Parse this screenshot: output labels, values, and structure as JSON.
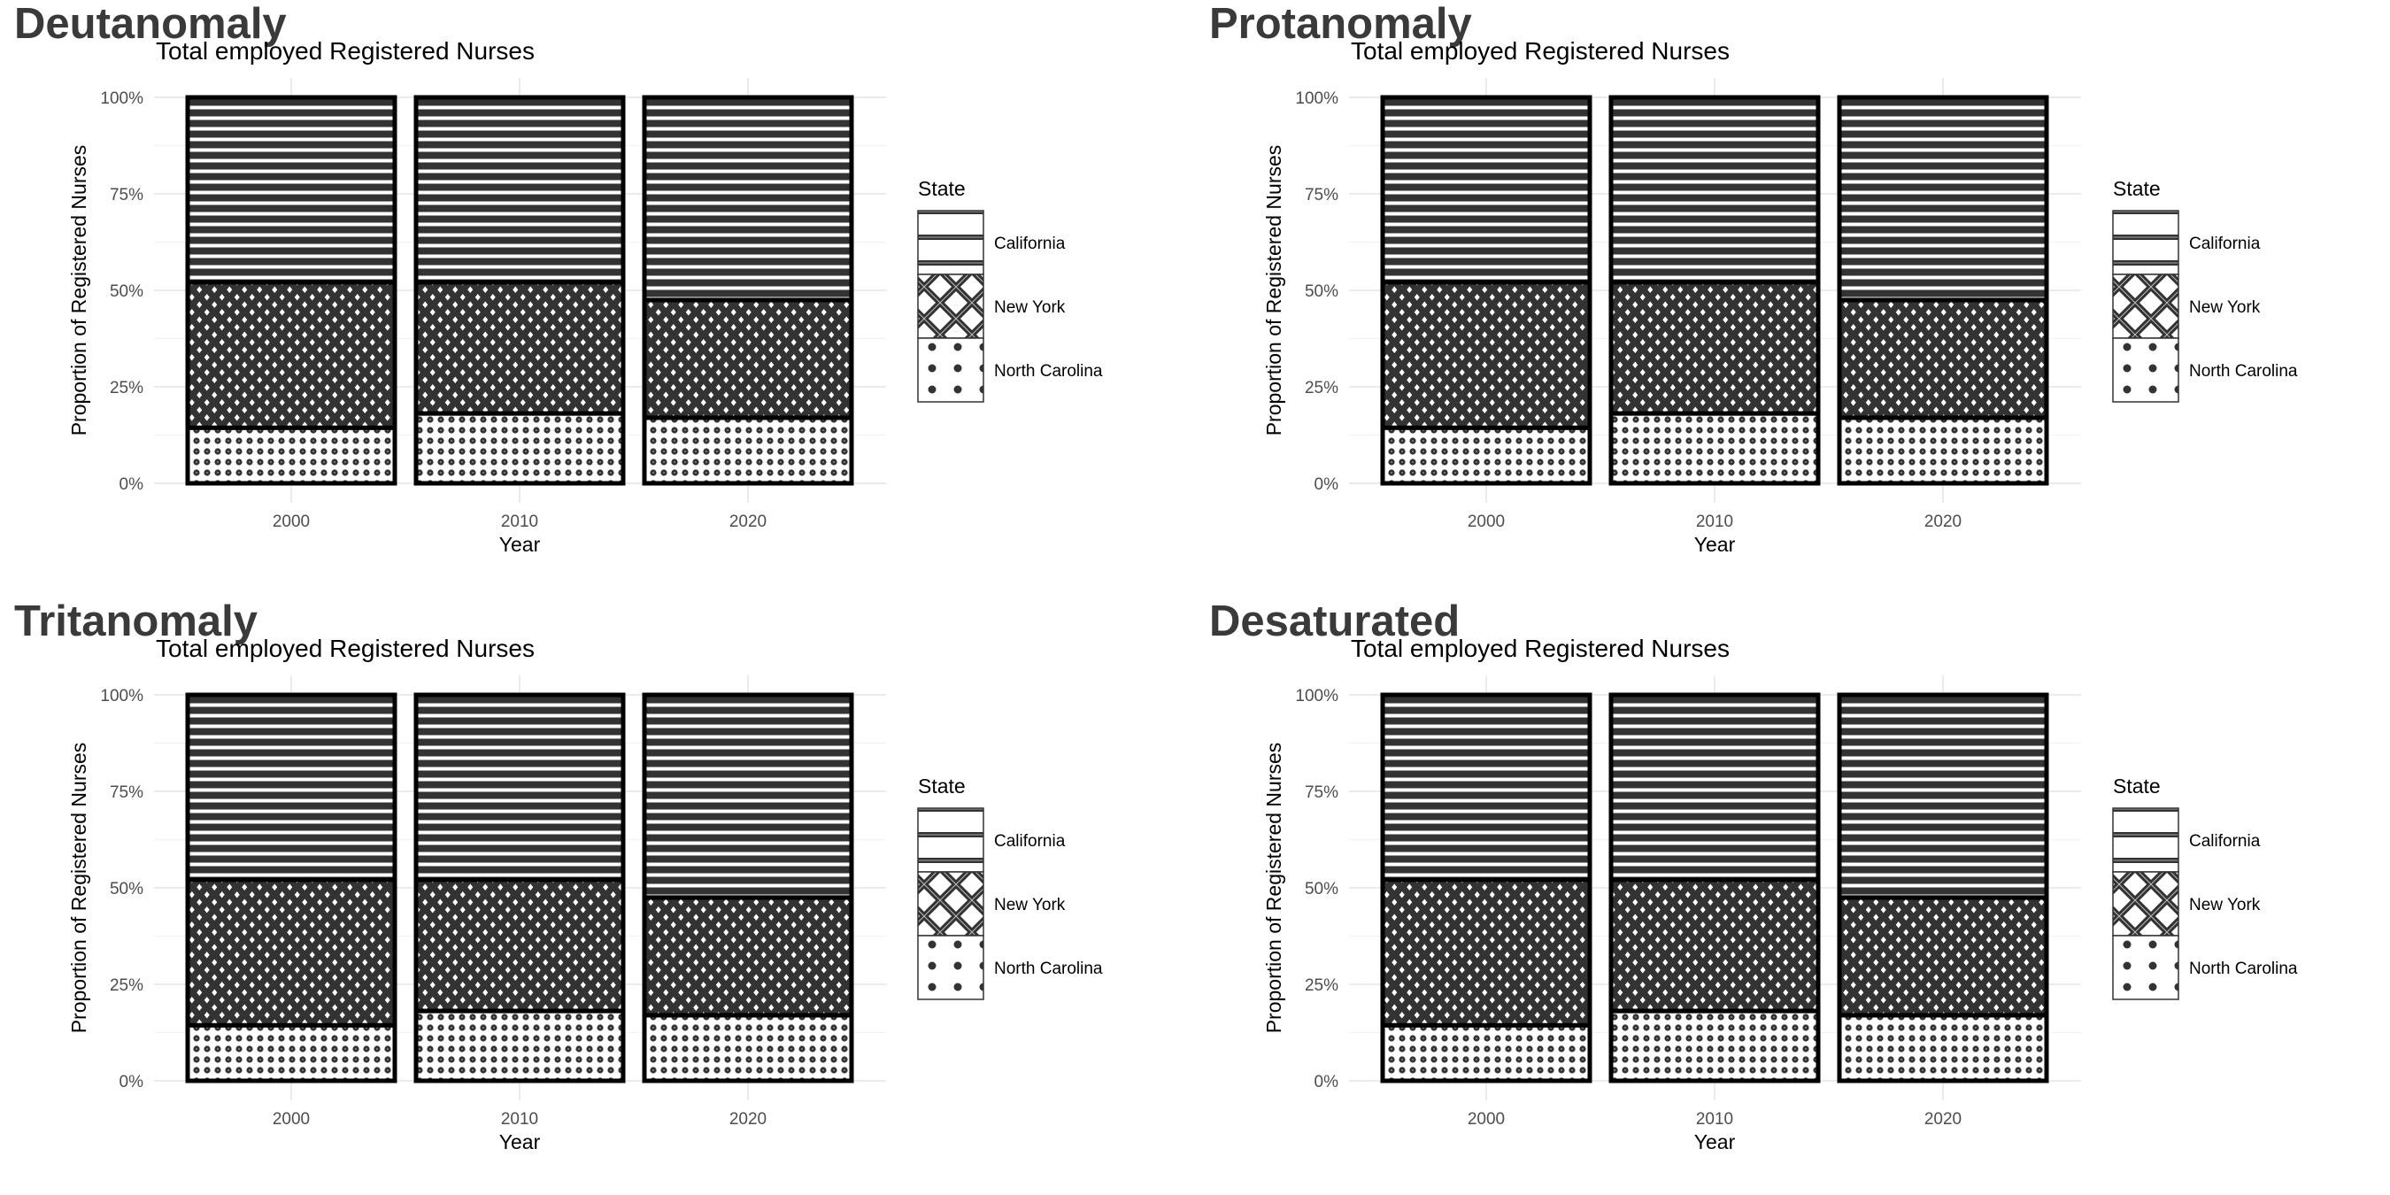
{
  "panels": [
    {
      "name": "Deutanomaly"
    },
    {
      "name": "Protanomaly"
    },
    {
      "name": "Tritanomaly"
    },
    {
      "name": "Desaturated"
    }
  ],
  "colors": {
    "fill_dark": "#333333",
    "outline": "#000000",
    "background": "#ffffff",
    "grid": "#ebebeb",
    "panel_title": "#3a3a3a",
    "tick_text": "#4d4d4d"
  },
  "chart_data": {
    "type": "bar",
    "stacked": true,
    "normalized": true,
    "title": "Total employed Registered Nurses",
    "xlabel": "Year",
    "ylabel": "Proportion of Registered Nurses",
    "categories": [
      "2000",
      "2010",
      "2020"
    ],
    "ylim": [
      0,
      1
    ],
    "yticks": [
      0,
      0.25,
      0.5,
      0.75,
      1
    ],
    "ytick_labels": [
      "0%",
      "25%",
      "50%",
      "75%",
      "100%"
    ],
    "grid": true,
    "legend": {
      "title": "State",
      "position": "right",
      "entries": [
        "California",
        "New York",
        "North Carolina"
      ]
    },
    "series": [
      {
        "name": "North Carolina",
        "pattern": "dots",
        "values": [
          0.144,
          0.181,
          0.17
        ]
      },
      {
        "name": "New York",
        "pattern": "crosshatch",
        "values": [
          0.377,
          0.34,
          0.305
        ]
      },
      {
        "name": "California",
        "pattern": "stripes",
        "values": [
          0.479,
          0.479,
          0.525
        ]
      }
    ]
  }
}
